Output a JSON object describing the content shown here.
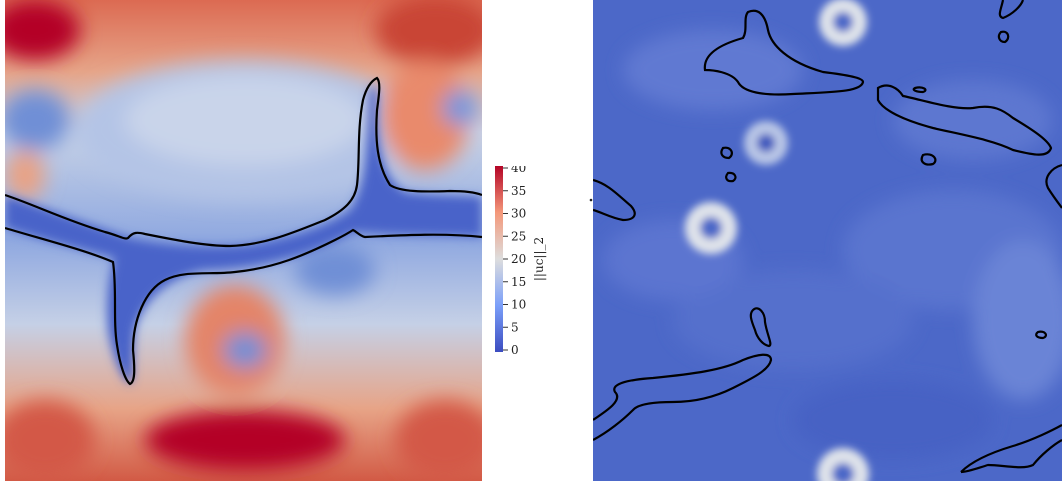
{
  "colorbar": {
    "title": "||uc||_2",
    "ticks": [
      "40",
      "35",
      "30",
      "25",
      "20",
      "15",
      "10",
      "5",
      "0"
    ],
    "range": [
      0,
      40
    ],
    "colors": {
      "low": "#3b4cc0",
      "mid": "#dddddd",
      "high": "#b40426"
    }
  },
  "panels": [
    {
      "name": "left-field",
      "colormap": "coolwarm",
      "contour_color": "#000000"
    },
    {
      "name": "right-field",
      "colormap": "coolwarm",
      "contour_color": "#000000"
    }
  ]
}
